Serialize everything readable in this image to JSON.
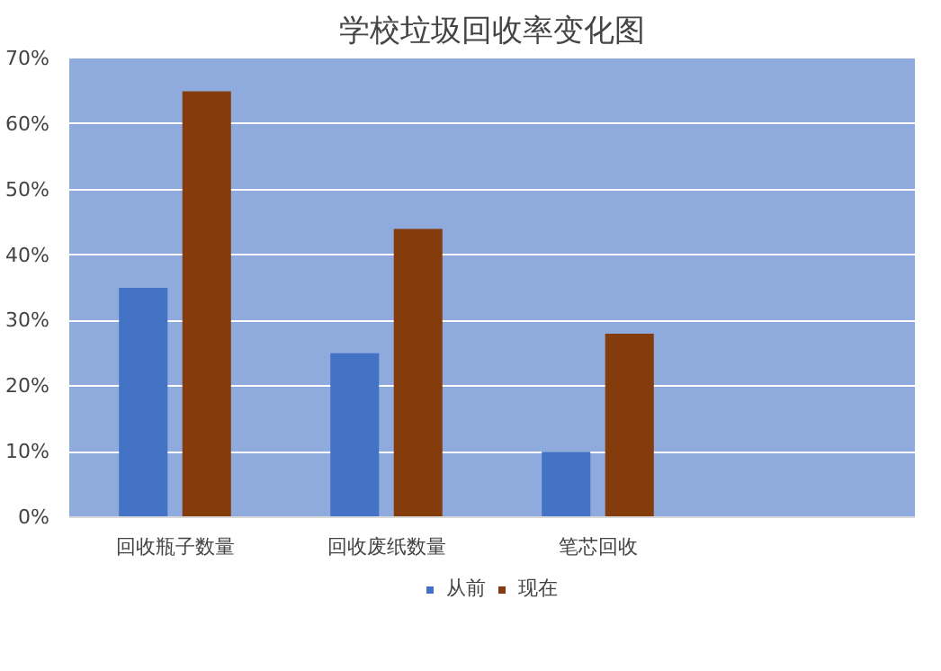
{
  "chart_data": {
    "type": "bar",
    "title": "学校垃圾回收率变化图",
    "categories": [
      "回收瓶子数量",
      "回收废纸数量",
      "笔芯回收",
      null
    ],
    "series": [
      {
        "name": "从前",
        "color": "#4472c4",
        "values": [
          35,
          25,
          10,
          null
        ]
      },
      {
        "name": "现在",
        "color": "#843c0c",
        "values": [
          65,
          44,
          28,
          null
        ]
      }
    ],
    "ylim": [
      0,
      70
    ],
    "yticks": [
      {
        "value": 0,
        "label": "0%"
      },
      {
        "value": 10,
        "label": "10%"
      },
      {
        "value": 20,
        "label": "20%"
      },
      {
        "value": 30,
        "label": "30%"
      },
      {
        "value": 40,
        "label": "40%"
      },
      {
        "value": 50,
        "label": "50%"
      },
      {
        "value": 60,
        "label": "60%"
      },
      {
        "value": 70,
        "label": "70%"
      }
    ],
    "grid": "y",
    "legend": "bottom"
  }
}
